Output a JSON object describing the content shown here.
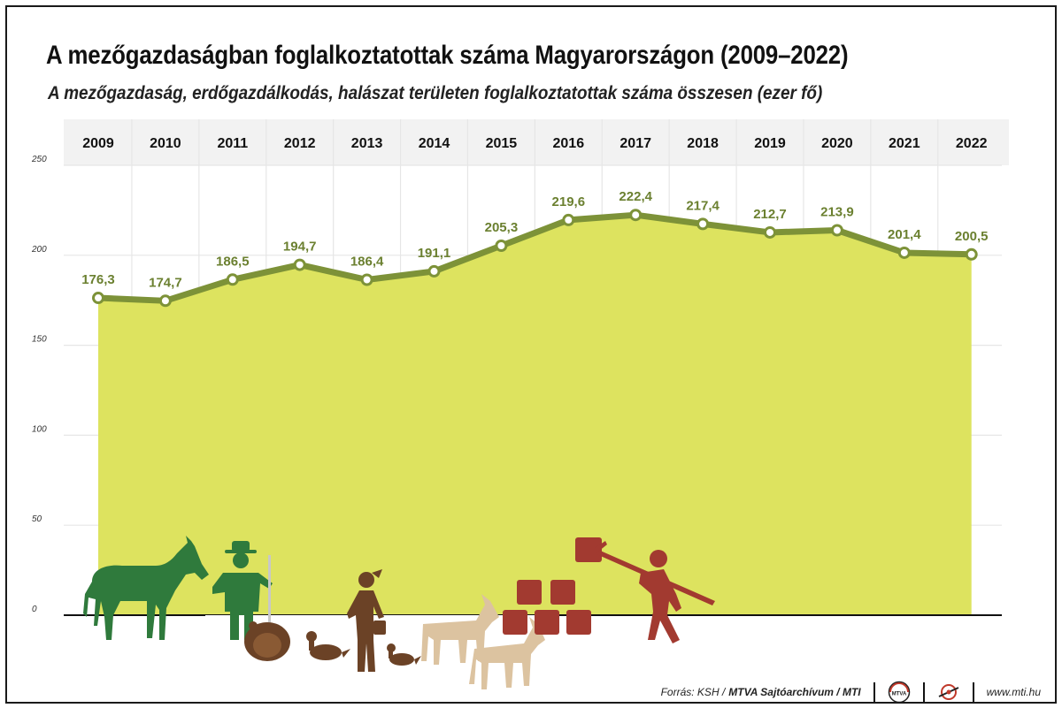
{
  "title": "A mezőgazdaságban foglalkoztatottak száma Magyarországon (2009–2022)",
  "subtitle": "A mezőgazdaság, erdőgazdálkodás, halászat területen foglalkoztatottak száma összesen (ezer fő)",
  "chart_data": {
    "type": "area",
    "x": [
      "2009",
      "2010",
      "2011",
      "2012",
      "2013",
      "2014",
      "2015",
      "2016",
      "2017",
      "2018",
      "2019",
      "2020",
      "2021",
      "2022"
    ],
    "values": [
      176.3,
      174.7,
      186.5,
      194.7,
      186.4,
      191.1,
      205.3,
      219.6,
      222.4,
      217.4,
      212.7,
      213.9,
      201.4,
      200.5
    ],
    "value_labels": [
      "176,3",
      "174,7",
      "186,5",
      "194,7",
      "186,4",
      "191,1",
      "205,3",
      "219,6",
      "222,4",
      "217,4",
      "212,7",
      "213,9",
      "201,4",
      "200,5"
    ],
    "y_ticks": [
      "0",
      "50",
      "100",
      "150",
      "200",
      "250"
    ],
    "ylim": [
      0,
      250
    ],
    "grid": true,
    "legend": "none",
    "colors": {
      "area": "#dde35f",
      "line": "#7d9238",
      "labels": "#6b8030",
      "header_band": "#f2f2f2",
      "horse": "#2f7a3c",
      "farmer": "#2f7a3c",
      "poultry": "#6b4226",
      "goat": "#dcc3a0",
      "hay": "#a23a30"
    }
  },
  "illustrations": [
    "horse-icon",
    "farmer-icon",
    "turkey-icon",
    "duck-icon",
    "woman-farmer-icon",
    "goat-icon",
    "hay-bales-icon",
    "worker-with-pitchfork-icon"
  ],
  "footer": {
    "source_label": "Forrás: KSH /",
    "source_org": "MTVA Sajtóarchívum / MTI",
    "logo_1": "MTVA",
    "url": "www.mti.hu"
  }
}
